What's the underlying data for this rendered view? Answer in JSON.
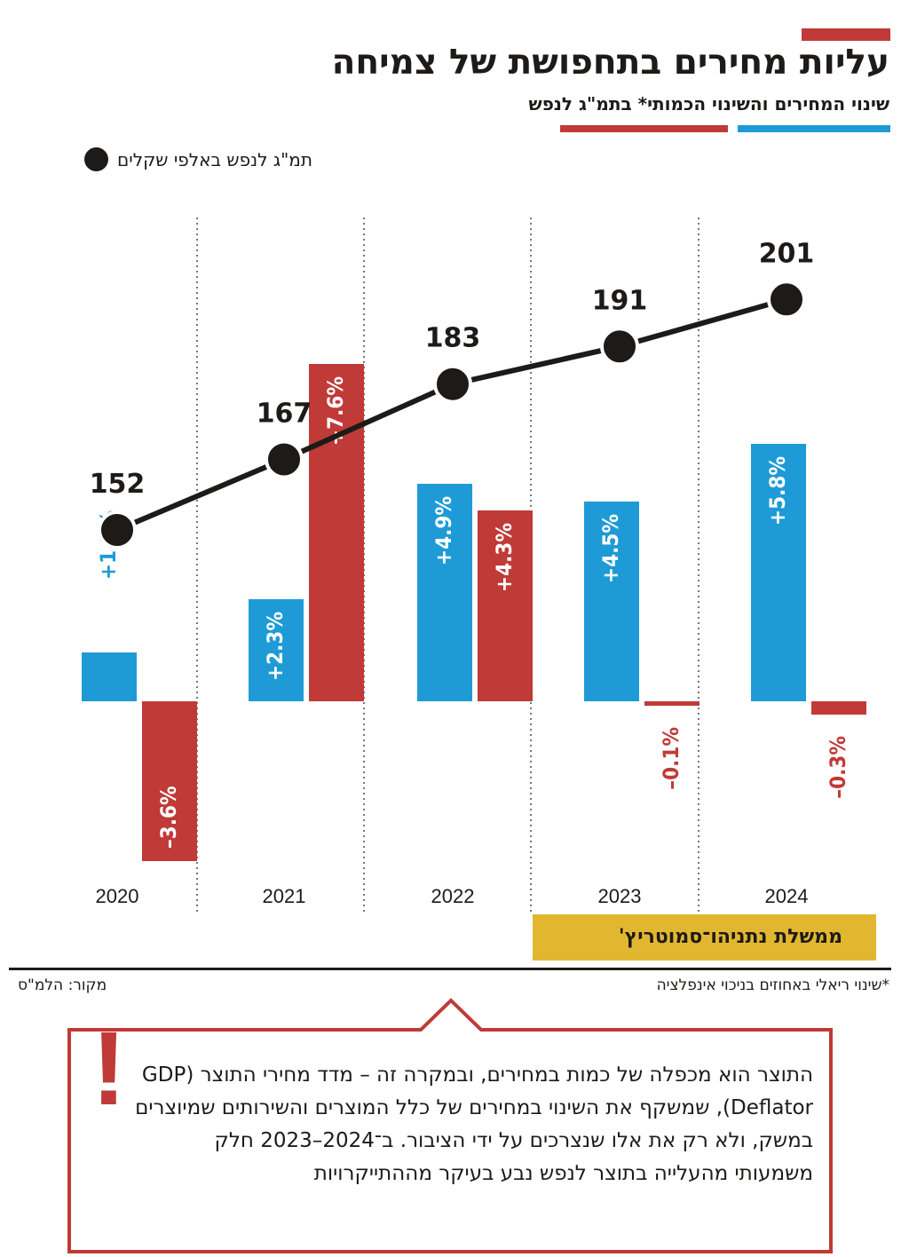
{
  "header": {
    "title": "עליות מחירים בתחפושת של צמיחה",
    "subtitle": "שינוי המחירים והשינוי הכמותי* בתמ\"ג לנפש",
    "dot_legend": "תמ\"ג לנפש באלפי שקלים"
  },
  "colors": {
    "prices": "#1e9bd6",
    "quantity": "#c03a37",
    "gdp_line": "#1e1a17",
    "government_band": "#e2b730"
  },
  "chart_data": {
    "type": "bar",
    "categories": [
      "2020",
      "2021",
      "2022",
      "2023",
      "2024"
    ],
    "series": [
      {
        "key": "prices",
        "values": [
          1.1,
          2.3,
          4.9,
          4.5,
          5.8
        ],
        "labels": [
          "+1.1%",
          "+2.3%",
          "+4.9%",
          "+4.5%",
          "+5.8%"
        ]
      },
      {
        "key": "quantity",
        "values": [
          -3.6,
          7.6,
          4.3,
          -0.1,
          -0.3
        ],
        "labels": [
          "–3.6%",
          "+7.6%",
          "+4.3%",
          "–0.1%",
          "–0.3%"
        ]
      }
    ],
    "line": {
      "values": [
        152,
        167,
        183,
        191,
        201
      ],
      "labels": [
        "152",
        "167",
        "183",
        "191",
        "201"
      ]
    },
    "grid": false
  },
  "government_label": "ממשלת נתניהו־סמוטריץ'",
  "footnote": "*שינוי ריאלי באחוזים בניכוי אינפלציה",
  "source": "מקור: הלמ\"ס",
  "callout": {
    "icon": "exclamation-icon",
    "text": "התוצר הוא מכפלה של כמות במחירים, ובמקרה זה – מדד מחירי התוצר (GDP Deflator), שמשקף את השינוי במחירים של כלל המוצרים והשירותים שמיוצרים במשק, ולא רק את אלו שנצרכים על ידי הציבור. ב־2024–2023 חלק משמעותי מהעלייה בתוצר לנפש נבע בעיקר מההתייקרויות"
  }
}
